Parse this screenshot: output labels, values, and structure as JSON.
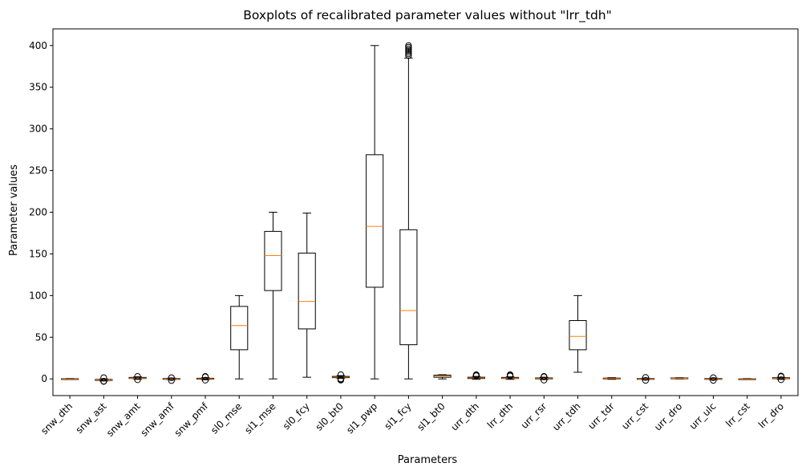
{
  "chart_data": {
    "type": "box",
    "title": "Boxplots of recalibrated parameter values without \"lrr_tdh\"",
    "xlabel": "Parameters",
    "ylabel": "Parameter values",
    "ylim": [
      -20,
      420
    ],
    "yticks": [
      0,
      50,
      100,
      150,
      200,
      250,
      300,
      350,
      400
    ],
    "grid": false,
    "colors": {
      "box": "#000000",
      "median": "#ff7f0e"
    },
    "categories": [
      "snw_dth",
      "snw_ast",
      "snw_amt",
      "snw_amf",
      "snw_pmf",
      "sl0_mse",
      "sl1_mse",
      "sl0_fcy",
      "sl0_bt0",
      "sl1_pwp",
      "sl1_fcy",
      "sl1_bt0",
      "urr_dth",
      "lrr_dth",
      "urr_rsr",
      "urr_tdh",
      "urr_tdr",
      "urr_cst",
      "urr_dro",
      "urr_ulc",
      "lrr_cst",
      "lrr_dro"
    ],
    "boxes": [
      {
        "whislo": -0.5,
        "q1": -0.3,
        "med": 0.0,
        "q3": 0.3,
        "whishi": 0.5,
        "fliers": []
      },
      {
        "whislo": -2.5,
        "q1": -1.8,
        "med": -1.2,
        "q3": -0.6,
        "whishi": 0.0,
        "fliers": [
          -3,
          -2.8,
          1.5
        ]
      },
      {
        "whislo": -0.5,
        "q1": 0.5,
        "med": 1.0,
        "q3": 1.8,
        "whishi": 2.5,
        "fliers": [
          -1,
          3.0
        ]
      },
      {
        "whislo": -1.0,
        "q1": -0.5,
        "med": 0.0,
        "q3": 0.5,
        "whishi": 1.0,
        "fliers": [
          -2,
          1.5
        ]
      },
      {
        "whislo": -1.0,
        "q1": -0.3,
        "med": 0.2,
        "q3": 0.8,
        "whishi": 1.5,
        "fliers": [
          2.5,
          3.0,
          -1.5
        ]
      },
      {
        "whislo": 0,
        "q1": 35,
        "med": 64,
        "q3": 87,
        "whishi": 100,
        "fliers": []
      },
      {
        "whislo": 0,
        "q1": 106,
        "med": 148,
        "q3": 177,
        "whishi": 200,
        "fliers": []
      },
      {
        "whislo": 2,
        "q1": 60,
        "med": 93,
        "q3": 151,
        "whishi": 199,
        "fliers": []
      },
      {
        "whislo": 0.5,
        "q1": 1.5,
        "med": 2.2,
        "q3": 3.0,
        "whishi": 4.0,
        "fliers": [
          -1.5,
          -0.8,
          0.0,
          5.0
        ]
      },
      {
        "whislo": 0,
        "q1": 110,
        "med": 183,
        "q3": 269,
        "whishi": 400,
        "fliers": []
      },
      {
        "whislo": 0,
        "q1": 41,
        "med": 82,
        "q3": 179,
        "whishi": 385,
        "fliers": [
          388,
          390,
          392,
          394,
          396,
          398,
          400
        ]
      },
      {
        "whislo": 0,
        "q1": 2.0,
        "med": 3.5,
        "q3": 4.5,
        "whishi": 5.0,
        "fliers": []
      },
      {
        "whislo": -0.5,
        "q1": 0.5,
        "med": 1.2,
        "q3": 2.0,
        "whishi": 3.0,
        "fliers": [
          3.8,
          4.5,
          5.0
        ]
      },
      {
        "whislo": -0.5,
        "q1": 0.5,
        "med": 1.0,
        "q3": 1.8,
        "whishi": 2.5,
        "fliers": [
          3.5,
          4.5,
          5.0
        ]
      },
      {
        "whislo": -0.8,
        "q1": 0.0,
        "med": 0.5,
        "q3": 1.2,
        "whishi": 2.0,
        "fliers": [
          2.5,
          3.0,
          -1.5
        ]
      },
      {
        "whislo": 8,
        "q1": 35,
        "med": 51,
        "q3": 70,
        "whishi": 100,
        "fliers": []
      },
      {
        "whislo": -0.5,
        "q1": 0.0,
        "med": 0.5,
        "q3": 1.0,
        "whishi": 1.5,
        "fliers": []
      },
      {
        "whislo": -1.0,
        "q1": -0.5,
        "med": 0.0,
        "q3": 0.5,
        "whishi": 1.0,
        "fliers": [
          -1.8,
          1.8
        ]
      },
      {
        "whislo": 0.0,
        "q1": 0.5,
        "med": 0.8,
        "q3": 1.2,
        "whishi": 1.5,
        "fliers": []
      },
      {
        "whislo": -1.0,
        "q1": -0.5,
        "med": 0.0,
        "q3": 0.5,
        "whishi": 1.0,
        "fliers": [
          -1.8,
          1.5
        ]
      },
      {
        "whislo": -0.5,
        "q1": -0.2,
        "med": 0.0,
        "q3": 0.2,
        "whishi": 0.5,
        "fliers": []
      },
      {
        "whislo": -0.5,
        "q1": 0.3,
        "med": 0.8,
        "q3": 1.5,
        "whishi": 2.0,
        "fliers": [
          2.8,
          3.5,
          -1.0
        ]
      }
    ]
  }
}
